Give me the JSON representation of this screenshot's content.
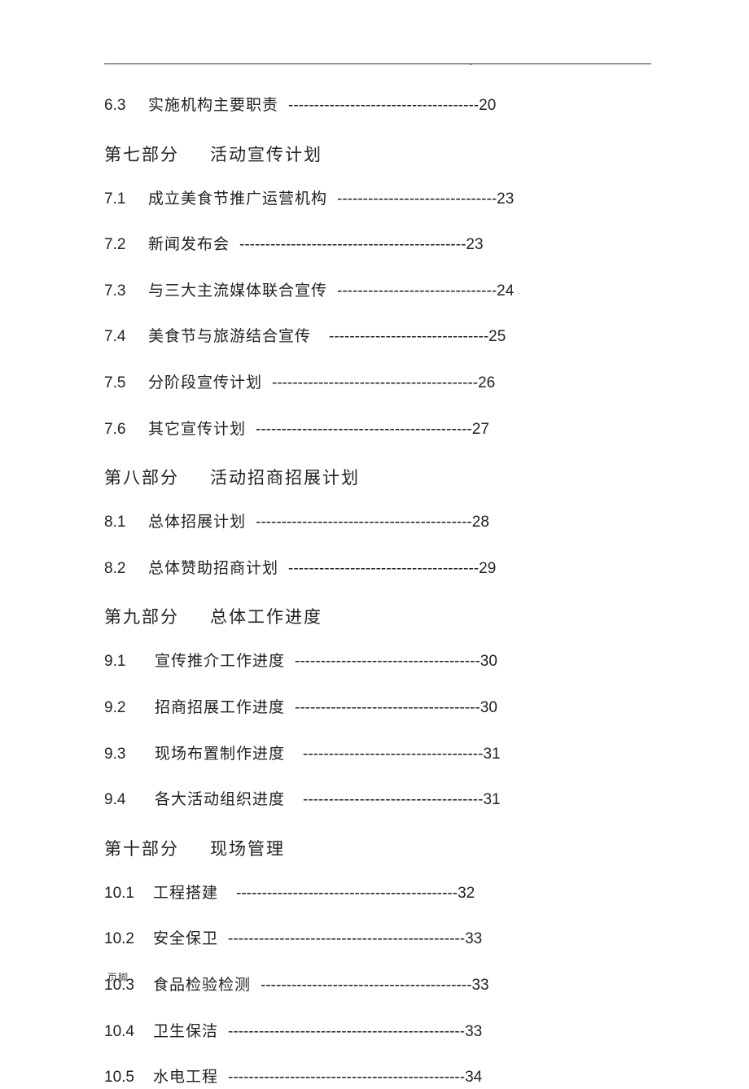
{
  "header_dot": ".",
  "footer": ".页脚",
  "entries": [
    {
      "kind": "item",
      "num": "6.3",
      "title": "实施机构主要职责",
      "dash": "-------------------------------------",
      "page": "20",
      "numClass": "toc-num",
      "gapClass": "toc-gap"
    },
    {
      "kind": "heading",
      "part": "第七部分",
      "name": "活动宣传计划"
    },
    {
      "kind": "item",
      "num": "7.1",
      "title": "成立美食节推广运营机构",
      "dash": "-------------------------------",
      "page": "23",
      "numClass": "toc-num",
      "gapClass": "toc-gap"
    },
    {
      "kind": "item",
      "num": "7.2",
      "title": "新闻发布会",
      "dash": "--------------------------------------------",
      "page": "23",
      "numClass": "toc-num",
      "gapClass": "toc-gap"
    },
    {
      "kind": "item",
      "num": "7.3",
      "title": "与三大主流媒体联合宣传",
      "dash": "-------------------------------",
      "page": "24",
      "numClass": "toc-num",
      "gapClass": "toc-gap"
    },
    {
      "kind": "item",
      "num": "7.4",
      "title": "美食节与旅游结合宣传",
      "dash": "-------------------------------",
      "page": "25",
      "numClass": "toc-num",
      "gapClass": "toc-gap-lg"
    },
    {
      "kind": "item",
      "num": "7.5",
      "title": "分阶段宣传计划",
      "dash": "----------------------------------------",
      "page": "26",
      "numClass": "toc-num",
      "gapClass": "toc-gap"
    },
    {
      "kind": "item",
      "num": "7.6",
      "title": "其它宣传计划",
      "dash": "------------------------------------------",
      "page": "27",
      "numClass": "toc-num",
      "gapClass": "toc-gap"
    },
    {
      "kind": "heading",
      "part": "第八部分",
      "name": "活动招商招展计划"
    },
    {
      "kind": "item",
      "num": "8.1",
      "title": "总体招展计划",
      "dash": "------------------------------------------",
      "page": "28",
      "numClass": "toc-num",
      "gapClass": "toc-gap"
    },
    {
      "kind": "item",
      "num": "8.2",
      "title": "总体赞助招商计划",
      "dash": "-------------------------------------",
      "page": "29",
      "numClass": "toc-num",
      "gapClass": "toc-gap"
    },
    {
      "kind": "heading",
      "part": "第九部分",
      "name": "总体工作进度"
    },
    {
      "kind": "item",
      "num": "9.1",
      "title": "宣传推介工作进度",
      "dash": "------------------------------------",
      "page": "30",
      "numClass": "toc-num-indent",
      "gapClass": "toc-gap"
    },
    {
      "kind": "item",
      "num": "9.2",
      "title": "招商招展工作进度",
      "dash": "------------------------------------",
      "page": "30",
      "numClass": "toc-num-indent",
      "gapClass": "toc-gap"
    },
    {
      "kind": "item",
      "num": "9.3",
      "title": "现场布置制作进度",
      "dash": "-----------------------------------",
      "page": "31",
      "numClass": "toc-num-indent",
      "gapClass": "toc-gap-lg"
    },
    {
      "kind": "item",
      "num": "9.4",
      "title": "各大活动组织进度",
      "dash": "-----------------------------------",
      "page": "31",
      "numClass": "toc-num-indent",
      "gapClass": "toc-gap-lg"
    },
    {
      "kind": "heading",
      "part": "第十部分",
      "name": "现场管理"
    },
    {
      "kind": "item",
      "num": "10.1",
      "title": "工程搭建",
      "dash": "-------------------------------------------",
      "page": "32",
      "numClass": "toc-num-wide",
      "gapClass": "toc-gap-lg"
    },
    {
      "kind": "item",
      "num": "10.2",
      "title": "安全保卫",
      "dash": "----------------------------------------------",
      "page": "33",
      "numClass": "toc-num-wide",
      "gapClass": "toc-gap"
    },
    {
      "kind": "item",
      "num": "10.3",
      "title": "食品检验检测",
      "dash": "-----------------------------------------",
      "page": "33",
      "numClass": "toc-num-wide",
      "gapClass": "toc-gap"
    },
    {
      "kind": "item",
      "num": "10.4",
      "title": "卫生保洁",
      "dash": "----------------------------------------------",
      "page": "33",
      "numClass": "toc-num-wide",
      "gapClass": "toc-gap"
    },
    {
      "kind": "item",
      "num": "10.5",
      "title": "水电工程",
      "dash": "----------------------------------------------",
      "page": "34",
      "numClass": "toc-num-wide",
      "gapClass": "toc-gap"
    }
  ]
}
